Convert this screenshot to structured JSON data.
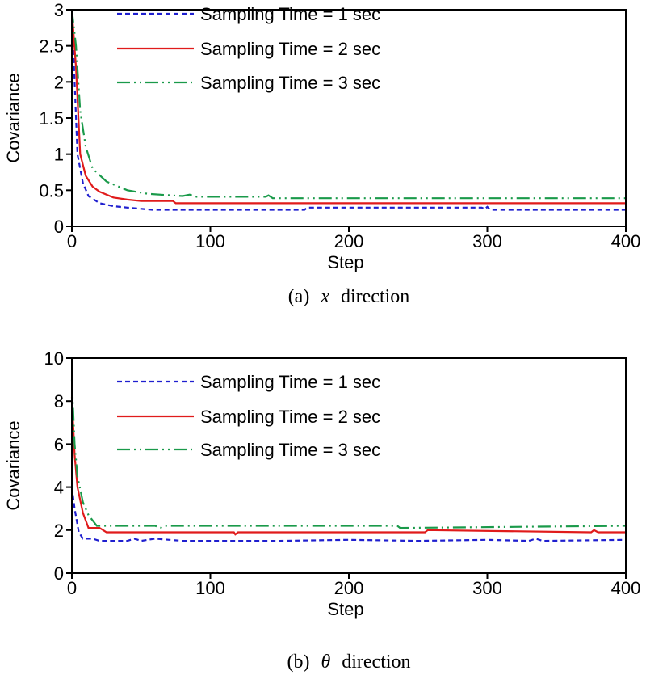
{
  "chart_data": [
    {
      "type": "line",
      "xlabel": "Step",
      "ylabel": "Covariance",
      "caption": "(a)  x  direction",
      "caption_prefix": "(a)",
      "caption_symbol": "x",
      "caption_suffix": "direction",
      "xlim": [
        0,
        400
      ],
      "ylim": [
        0,
        3
      ],
      "xticks": [
        0,
        100,
        200,
        300,
        400
      ],
      "yticks": [
        0,
        0.5,
        1,
        1.5,
        2,
        2.5,
        3
      ],
      "ytick_labels": [
        "0",
        "0.5",
        "1",
        "1.5",
        "2",
        "2.5",
        "3"
      ],
      "grid": false,
      "legend": "top-center",
      "series": [
        {
          "name": "Sampling Time = 1 sec",
          "color": "#1f1fcf",
          "style": "dashed",
          "x": [
            0,
            2,
            4,
            8,
            12,
            20,
            30,
            40,
            58,
            168,
            170,
            296,
            298,
            300,
            302,
            400
          ],
          "y": [
            3,
            2.0,
            1.0,
            0.6,
            0.42,
            0.32,
            0.28,
            0.26,
            0.23,
            0.23,
            0.26,
            0.26,
            0.24,
            0.27,
            0.23,
            0.23
          ]
        },
        {
          "name": "Sampling Time = 2 sec",
          "color": "#e01b1b",
          "style": "solid",
          "x": [
            0,
            3,
            6,
            10,
            15,
            20,
            30,
            40,
            50,
            73,
            75,
            400
          ],
          "y": [
            3,
            2.2,
            1.0,
            0.7,
            0.55,
            0.48,
            0.4,
            0.37,
            0.35,
            0.35,
            0.32,
            0.32
          ]
        },
        {
          "name": "Sampling Time = 3 sec",
          "color": "#1a9a4a",
          "style": "dashdotdot",
          "x": [
            0,
            3,
            6,
            10,
            15,
            25,
            40,
            55,
            80,
            85,
            90,
            140,
            142,
            145,
            400
          ],
          "y": [
            3,
            2.5,
            1.6,
            1.1,
            0.8,
            0.62,
            0.5,
            0.45,
            0.42,
            0.44,
            0.41,
            0.41,
            0.43,
            0.39,
            0.39
          ]
        }
      ]
    },
    {
      "type": "line",
      "xlabel": "Step",
      "ylabel": "Covariance",
      "caption_prefix": "(b)",
      "caption_symbol": "θ",
      "caption_suffix": "direction",
      "xlim": [
        0,
        400
      ],
      "ylim": [
        0,
        10
      ],
      "xticks": [
        0,
        100,
        200,
        300,
        400
      ],
      "yticks": [
        0,
        2,
        4,
        6,
        8,
        10
      ],
      "ytick_labels": [
        "0",
        "2",
        "4",
        "6",
        "8",
        "10"
      ],
      "grid": false,
      "legend": "top-center",
      "series": [
        {
          "name": "Sampling Time = 1 sec",
          "color": "#1f1fcf",
          "style": "dashed",
          "x": [
            0,
            2,
            5,
            8,
            15,
            20,
            40,
            45,
            50,
            60,
            80,
            100,
            150,
            200,
            250,
            300,
            330,
            335,
            340,
            400
          ],
          "y": [
            4.0,
            3.0,
            1.9,
            1.6,
            1.6,
            1.5,
            1.5,
            1.6,
            1.5,
            1.6,
            1.5,
            1.5,
            1.5,
            1.55,
            1.5,
            1.55,
            1.5,
            1.6,
            1.5,
            1.55
          ]
        },
        {
          "name": "Sampling Time = 2 sec",
          "color": "#e01b1b",
          "style": "solid",
          "x": [
            0,
            2,
            4,
            8,
            12,
            20,
            25,
            117,
            118,
            120,
            255,
            257,
            375,
            377,
            380,
            400
          ],
          "y": [
            8.2,
            5.5,
            4.0,
            2.8,
            2.1,
            2.1,
            1.9,
            1.9,
            1.8,
            1.9,
            1.9,
            2.0,
            1.9,
            2.0,
            1.9,
            1.9
          ]
        },
        {
          "name": "Sampling Time = 3 sec",
          "color": "#1a9a4a",
          "style": "dashdotdot",
          "x": [
            0,
            2,
            4,
            8,
            12,
            18,
            60,
            64,
            66,
            235,
            237,
            400
          ],
          "y": [
            9.0,
            6.0,
            4.5,
            3.3,
            2.7,
            2.2,
            2.2,
            2.1,
            2.2,
            2.2,
            2.1,
            2.2
          ]
        }
      ]
    }
  ]
}
